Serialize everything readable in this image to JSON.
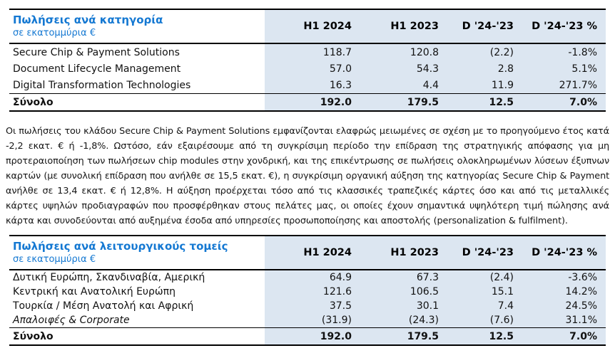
{
  "colors": {
    "accent_blue": "#1478d2",
    "numeric_column_shading": "#dce6f1",
    "rule_color": "#000000"
  },
  "category_table": {
    "title": "Πωλήσεις ανά κατηγορία",
    "subtitle": "σε εκατομμύρια €",
    "columns": [
      "H1 2024",
      "H1 2023",
      "D '24-'23",
      "D '24-'23 %"
    ],
    "rows": [
      {
        "label": "Secure Chip & Payment Solutions",
        "values": [
          "118.7",
          "120.8",
          "(2.2)",
          "-1.8%"
        ]
      },
      {
        "label": "Document Lifecycle Management",
        "values": [
          "57.0",
          "54.3",
          "2.8",
          "5.1%"
        ]
      },
      {
        "label": "Digital Transformation Technologies",
        "values": [
          "16.3",
          "4.4",
          "11.9",
          "271.7%"
        ]
      }
    ],
    "total": {
      "label": "Σύνολο",
      "values": [
        "192.0",
        "179.5",
        "12.5",
        "7.0%"
      ]
    }
  },
  "commentary": {
    "text": "Οι πωλήσεις του κλάδου Secure Chip & Payment Solutions εμφανίζονται ελαφρώς μειωμένες σε σχέση με το προηγούμενο έτος κατά -2,2 εκατ. € ή -1,8%. Ωστόσο, εάν εξαιρέσουμε από τη συγκρίσιμη περίοδο την επίδραση της στρατηγικής απόφασης για μη προτεραιοποίηση των πωλήσεων chip modules στην χονδρική, και της επικέντρωσης σε πωλήσεις ολοκληρωμένων λύσεων έξυπνων καρτών (με συνολική επίδραση που ανήλθε σε 15,5 εκατ. €), η συγκρίσιμη οργανική αύξηση της κατηγορίας Secure Chip & Payment ανήλθε σε 13,4 εκατ. € ή 12,8%. Η αύξηση προέρχεται τόσο από τις κλασσικές τραπεζικές κάρτες όσο και από τις μεταλλικές κάρτες υψηλών προδιαγραφών που προσφέρθηκαν στους πελάτες μας, οι οποίες έχουν σημαντικά υψηλότερη τιμή πώλησης ανά κάρτα και συνοδεύονται από αυξημένα έσοδα από υπηρεσίες προσωποποίησης και αποστολής (personalization & fulfilment)."
  },
  "segment_table": {
    "title": "Πωλήσεις ανά λειτουργικούς τομείς",
    "subtitle": "σε εκατομμύρια €",
    "columns": [
      "H1 2024",
      "H1 2023",
      "D '24-'23",
      "D '24-'23 %"
    ],
    "rows": [
      {
        "label": "Δυτική Ευρώπη, Σκανδιναβία, Αμερική",
        "values": [
          "64.9",
          "67.3",
          "(2.4)",
          "-3.6%"
        ]
      },
      {
        "label": "Κεντρική και Ανατολική Ευρώπη",
        "values": [
          "121.6",
          "106.5",
          "15.1",
          "14.2%"
        ]
      },
      {
        "label": "Τουρκία / Μέση Ανατολή και Αφρική",
        "values": [
          "37.5",
          "30.1",
          "7.4",
          "24.5%"
        ]
      },
      {
        "label": "Απαλοιφές & Corporate",
        "values": [
          "(31.9)",
          "(24.3)",
          "(7.6)",
          "31.1%"
        ]
      }
    ],
    "total": {
      "label": "Σύνολο",
      "values": [
        "192.0",
        "179.5",
        "12.5",
        "7.0%"
      ]
    }
  }
}
